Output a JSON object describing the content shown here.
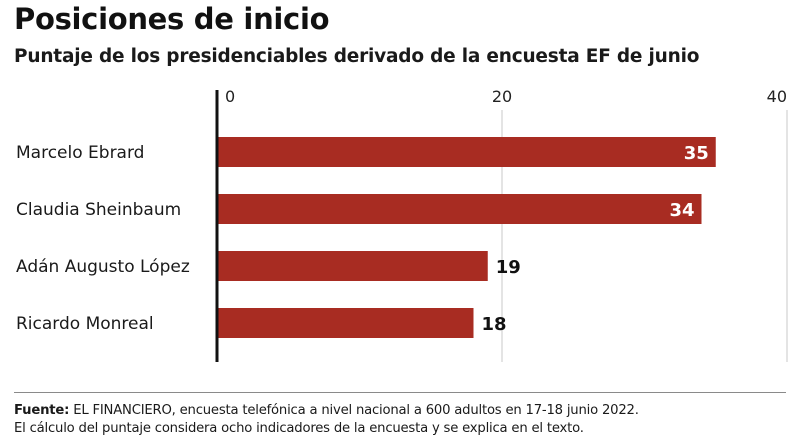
{
  "header": {
    "title": "Posiciones de inicio",
    "subtitle": "Puntaje de los presidenciables derivado de la encuesta EF de junio"
  },
  "colors": {
    "bar": "#a82c22",
    "axis": "#111111",
    "grid": "#c8c8c8"
  },
  "chart_data": {
    "type": "bar",
    "orientation": "horizontal",
    "title": "Posiciones de inicio",
    "subtitle": "Puntaje de los presidenciables derivado de la encuesta EF de junio",
    "categories": [
      "Marcelo Ebrard",
      "Claudia Sheinbaum",
      "Adán Augusto López",
      "Ricardo Monreal"
    ],
    "values": [
      35,
      34,
      19,
      18
    ],
    "data_labels": [
      "35",
      "34",
      "19",
      "18"
    ],
    "xlim": [
      0,
      40
    ],
    "xticks": [
      0,
      20,
      40
    ],
    "xtick_labels": [
      "0",
      "20",
      "40"
    ],
    "xlabel": "",
    "ylabel": "",
    "grid": true,
    "legend": "none",
    "tick_position": "top"
  },
  "footer": {
    "source_label": "Fuente:",
    "source_text": " EL FINANCIERO, encuesta telefónica a nivel nacional a 600 adultos en 17-18 junio 2022.",
    "note": "El cálculo del puntaje considera ocho indicadores de la encuesta y se explica en el texto."
  }
}
